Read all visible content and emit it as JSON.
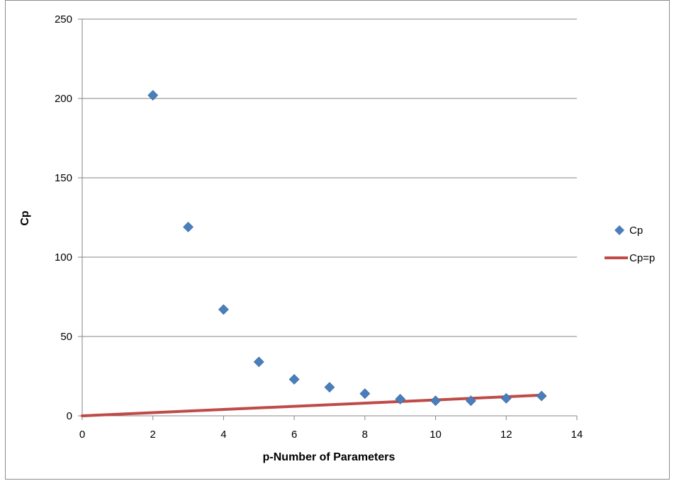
{
  "chart_data": {
    "type": "scatter",
    "xlabel": "p-Number of Parameters",
    "ylabel": "Cp",
    "xlim": [
      0,
      14
    ],
    "ylim": [
      0,
      250
    ],
    "x_ticks": [
      0,
      2,
      4,
      6,
      8,
      10,
      12,
      14
    ],
    "y_ticks": [
      0,
      50,
      100,
      150,
      200,
      250
    ],
    "grid": "horizontal",
    "legend": "right",
    "series": [
      {
        "name": "Cp",
        "kind": "scatter",
        "marker": "diamond",
        "color": "#4a7ebb",
        "x": [
          2,
          3,
          4,
          5,
          6,
          7,
          8,
          9,
          10,
          11,
          12,
          13
        ],
        "y": [
          202,
          119,
          67,
          34,
          23,
          18,
          14,
          10.5,
          9.5,
          9.5,
          11,
          12.5
        ]
      },
      {
        "name": "Cp=p",
        "kind": "line",
        "color": "#be4b48",
        "x": [
          0,
          13
        ],
        "y": [
          0,
          13
        ]
      }
    ]
  }
}
